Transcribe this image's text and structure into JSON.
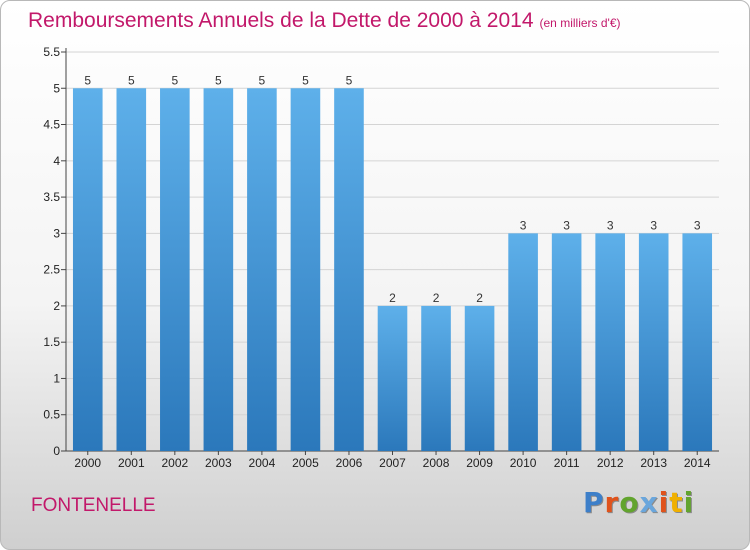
{
  "title": {
    "main": "Remboursements Annuels de la Dette de 2000 à 2014",
    "unit": "(en milliers d'€)"
  },
  "footer": {
    "commune": "FONTENELLE"
  },
  "logo": {
    "text": "Proxiti",
    "letter_colors": [
      "#3d7fc9",
      "#e0531c",
      "#62a42e",
      "#6aa6dc",
      "#e0531c",
      "#f0b000",
      "#62a42e"
    ]
  },
  "colors": {
    "title": "#c2186a",
    "bar_top": "#5eb0ea",
    "bar_bottom": "#2b78bb",
    "grid": "#d4d4d4"
  },
  "chart_data": {
    "type": "bar",
    "categories": [
      "2000",
      "2001",
      "2002",
      "2003",
      "2004",
      "2005",
      "2006",
      "2007",
      "2008",
      "2009",
      "2010",
      "2011",
      "2012",
      "2013",
      "2014"
    ],
    "values": [
      5,
      5,
      5,
      5,
      5,
      5,
      5,
      2,
      2,
      2,
      3,
      3,
      3,
      3,
      3
    ],
    "ylim": [
      0,
      5.5
    ],
    "yticks": [
      "0",
      "0.5",
      "1",
      "1.5",
      "2",
      "2.5",
      "3",
      "3.5",
      "4",
      "4.5",
      "5",
      "5.5"
    ],
    "grid": true,
    "data_labels": true
  }
}
